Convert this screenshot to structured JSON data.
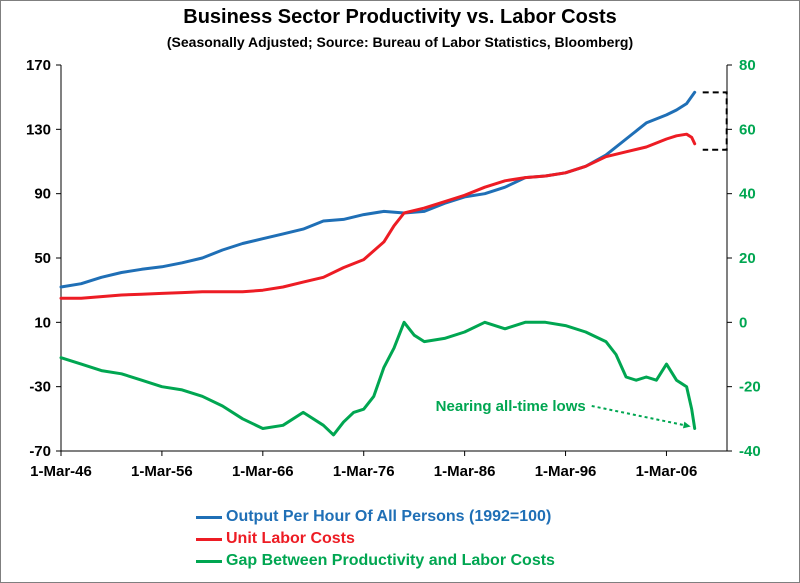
{
  "chart_data": {
    "type": "line",
    "title": "Business Sector Productivity vs. Labor Costs",
    "subtitle": "(Seasonally Adjusted; Source: Bureau of Labor Statistics, Bloomberg)",
    "left_axis": {
      "ylim": [
        -70,
        170
      ],
      "ticks": [
        "170",
        "130",
        "90",
        "50",
        "10",
        "-30",
        "-70"
      ]
    },
    "right_axis": {
      "ylim": [
        -40,
        80
      ],
      "ticks": [
        "80",
        "60",
        "40",
        "20",
        "0",
        "-20",
        "-40"
      ]
    },
    "x_axis": {
      "xlim": [
        1946,
        2012
      ],
      "tick_labels": [
        "1-Mar-46",
        "1-Mar-56",
        "1-Mar-66",
        "1-Mar-76",
        "1-Mar-86",
        "1-Mar-96",
        "1-Mar-06"
      ]
    },
    "grid": false,
    "legend_position": "bottom",
    "series": [
      {
        "name": "Output Per Hour Of All Persons (1992=100)",
        "axis": "left",
        "color": "#1f6fb6",
        "x": [
          1946,
          1948,
          1950,
          1952,
          1954,
          1956,
          1958,
          1960,
          1962,
          1964,
          1966,
          1968,
          1970,
          1972,
          1974,
          1976,
          1978,
          1980,
          1982,
          1984,
          1986,
          1988,
          1990,
          1992,
          1994,
          1996,
          1998,
          2000,
          2002,
          2004,
          2006,
          2007,
          2008,
          2008.8
        ],
        "y": [
          32,
          34,
          38,
          41,
          43,
          44.5,
          47,
          50,
          55,
          59,
          62,
          65,
          68,
          73,
          74,
          77,
          79,
          78,
          79,
          84,
          88,
          90,
          94,
          100,
          101,
          103,
          107,
          114,
          124,
          134,
          139,
          142,
          146,
          153
        ]
      },
      {
        "name": "Unit Labor Costs",
        "axis": "left",
        "color": "#ed1c24",
        "x": [
          1946,
          1948,
          1950,
          1952,
          1954,
          1956,
          1958,
          1960,
          1962,
          1964,
          1966,
          1968,
          1970,
          1972,
          1974,
          1976,
          1978,
          1979,
          1980,
          1982,
          1984,
          1986,
          1988,
          1990,
          1992,
          1994,
          1996,
          1998,
          2000,
          2002,
          2004,
          2006,
          2007,
          2008,
          2008.5,
          2008.8
        ],
        "y": [
          25,
          25,
          26,
          27,
          27.5,
          28,
          28.5,
          29,
          29,
          29,
          30,
          32,
          35,
          38,
          44,
          49,
          60,
          70,
          78,
          81,
          85,
          89,
          94,
          98,
          100,
          101,
          103,
          107,
          113,
          116,
          119,
          124,
          126,
          127,
          125,
          121
        ]
      },
      {
        "name": "Gap Between Productivity and Labor Costs",
        "axis": "right",
        "color": "#00a651",
        "x": [
          1946,
          1948,
          1950,
          1952,
          1954,
          1956,
          1958,
          1960,
          1962,
          1964,
          1966,
          1968,
          1970,
          1972,
          1973,
          1974,
          1975,
          1976,
          1977,
          1978,
          1979,
          1980,
          1981,
          1982,
          1984,
          1986,
          1988,
          1990,
          1992,
          1994,
          1996,
          1998,
          2000,
          2001,
          2002,
          2003,
          2004,
          2005,
          2006,
          2007,
          2008,
          2008.5,
          2008.8
        ],
        "y": [
          -11,
          -13,
          -15,
          -16,
          -18,
          -20,
          -21,
          -23,
          -26,
          -30,
          -33,
          -32,
          -28,
          -32,
          -35,
          -31,
          -28,
          -27,
          -23,
          -14,
          -8,
          0,
          -4,
          -6,
          -5,
          -3,
          0,
          -2,
          0,
          0,
          -1,
          -3,
          -6,
          -10,
          -17,
          -18,
          -17,
          -18,
          -13,
          -18,
          -20,
          -27,
          -33
        ]
      }
    ],
    "annotations": [
      {
        "text": "Nearing all-time lows",
        "x": 1998,
        "y": -26
      }
    ]
  },
  "legend": [
    {
      "label": "Output Per Hour Of All Persons (1992=100)",
      "color": "#1f6fb6"
    },
    {
      "label": "Unit Labor Costs",
      "color": "#ed1c24"
    },
    {
      "label": "Gap Between Productivity and Labor Costs",
      "color": "#00a651"
    }
  ]
}
